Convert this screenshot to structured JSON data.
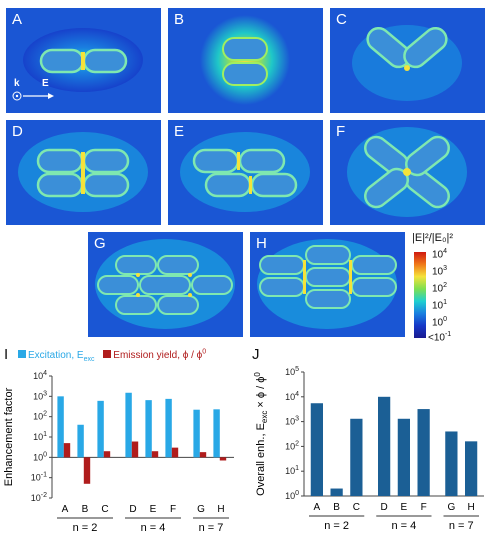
{
  "panels": [
    {
      "label": "A"
    },
    {
      "label": "B"
    },
    {
      "label": "C"
    },
    {
      "label": "D"
    },
    {
      "label": "E"
    },
    {
      "label": "F"
    },
    {
      "label": "G"
    },
    {
      "label": "H"
    }
  ],
  "inset": {
    "k": "k",
    "E": "E"
  },
  "colorbar": {
    "title": "|E|²/|E₀|²",
    "ticks": [
      {
        "base": "10",
        "exp": "4"
      },
      {
        "base": "10",
        "exp": "3"
      },
      {
        "base": "10",
        "exp": "2"
      },
      {
        "base": "10",
        "exp": "1"
      },
      {
        "base": "10",
        "exp": "0"
      },
      {
        "base": "<10",
        "exp": "-1"
      }
    ]
  },
  "chart_data": [
    {
      "panel": "I",
      "type": "bar",
      "ylabel": "Enhancement factor",
      "yscale": "log",
      "ylim_exp": [
        -2,
        4
      ],
      "legend": {
        "excitation": "Excitation, E",
        "excitation_sub": "exc",
        "emission": "Emission yield, ϕ / ϕ",
        "emission_sup": "0"
      },
      "categories": [
        "A",
        "B",
        "C",
        "D",
        "E",
        "F",
        "G",
        "H"
      ],
      "series": [
        {
          "key": "excitation",
          "color": "#29a8e6",
          "values": [
            1000,
            40,
            600,
            1500,
            650,
            750,
            220,
            230
          ]
        },
        {
          "key": "emission",
          "color": "#b01c1c",
          "values": [
            5,
            0.05,
            2,
            6,
            2,
            3,
            1.8,
            0.7
          ]
        }
      ],
      "groups": [
        {
          "label": "n = 2",
          "from": 0,
          "to": 2
        },
        {
          "label": "n = 4",
          "from": 3,
          "to": 5
        },
        {
          "label": "n = 7",
          "from": 6,
          "to": 7
        }
      ]
    },
    {
      "panel": "J",
      "type": "bar",
      "ylabel": "Overall enh., E",
      "ylabel_sub": "exc",
      "ylabel_tail": " × ϕ / ϕ",
      "ylabel_sup": "0",
      "yscale": "log",
      "ylim_exp": [
        0,
        5
      ],
      "categories": [
        "A",
        "B",
        "C",
        "D",
        "E",
        "F",
        "G",
        "H"
      ],
      "series": [
        {
          "key": "overall",
          "color": "#1b5f95",
          "values": [
            5500,
            2,
            1300,
            10000,
            1300,
            3200,
            400,
            160
          ]
        }
      ],
      "groups": [
        {
          "label": "n = 2",
          "from": 0,
          "to": 2
        },
        {
          "label": "n = 4",
          "from": 3,
          "to": 5
        },
        {
          "label": "n = 7",
          "from": 6,
          "to": 7
        }
      ]
    }
  ]
}
